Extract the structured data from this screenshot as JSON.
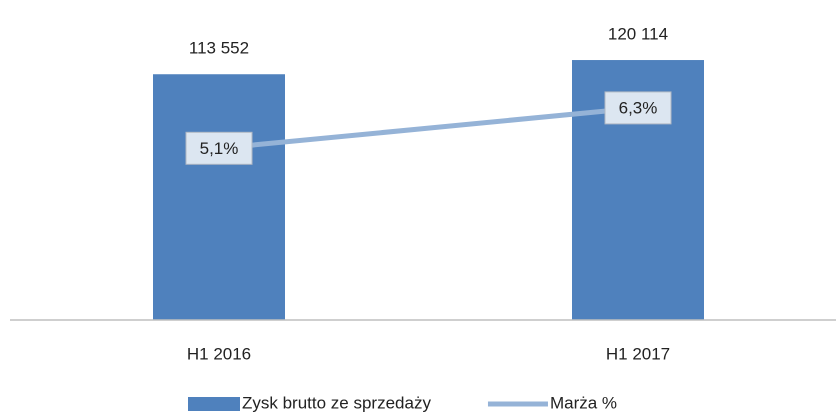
{
  "chart_data": {
    "type": "bar-line",
    "categories": [
      "H1 2016",
      "H1 2017"
    ],
    "series": [
      {
        "name": "Zysk brutto ze sprzedaży",
        "color": "#4f81bd",
        "type": "bar",
        "values": [
          113552,
          120114
        ],
        "value_labels": [
          "113 552",
          "120 114"
        ]
      },
      {
        "name": "Marża %",
        "color": "#95b3d7",
        "type": "line",
        "axis": "y2",
        "values": [
          5.1,
          6.3
        ],
        "value_labels": [
          "5,1%",
          "6,3%"
        ]
      }
    ],
    "ylim": [
      0,
      140000
    ],
    "y2lim": [
      0,
      9
    ],
    "grid": false,
    "legend": "bottom"
  }
}
